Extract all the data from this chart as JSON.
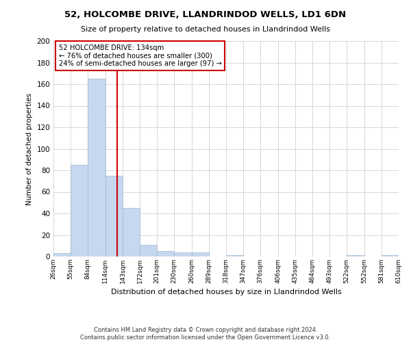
{
  "title1": "52, HOLCOMBE DRIVE, LLANDRINDOD WELLS, LD1 6DN",
  "title2": "Size of property relative to detached houses in Llandrindod Wells",
  "xlabel": "Distribution of detached houses by size in Llandrindod Wells",
  "ylabel": "Number of detached properties",
  "property_size": 134,
  "annotation_line1": "52 HOLCOMBE DRIVE: 134sqm",
  "annotation_line2": "← 76% of detached houses are smaller (300)",
  "annotation_line3": "24% of semi-detached houses are larger (97) →",
  "footnote1": "Contains HM Land Registry data © Crown copyright and database right 2024.",
  "footnote2": "Contains public sector information licensed under the Open Government Licence v3.0.",
  "bin_edges": [
    26,
    55,
    84,
    114,
    143,
    172,
    201,
    230,
    260,
    289,
    318,
    347,
    376,
    406,
    435,
    464,
    493,
    522,
    552,
    581,
    610
  ],
  "bin_counts": [
    3,
    85,
    165,
    75,
    45,
    11,
    5,
    4,
    4,
    0,
    1,
    0,
    0,
    0,
    0,
    0,
    0,
    1,
    0,
    1
  ],
  "bar_color": "#c5d8ed",
  "bar_edge_color": "#a0b8d0",
  "vline_color": "#cc0000",
  "annotation_box_color": "#cc0000",
  "grid_color": "#d0d0d0",
  "background_color": "#ffffff",
  "ylim": [
    0,
    200
  ],
  "yticks": [
    0,
    20,
    40,
    60,
    80,
    100,
    120,
    140,
    160,
    180,
    200
  ]
}
